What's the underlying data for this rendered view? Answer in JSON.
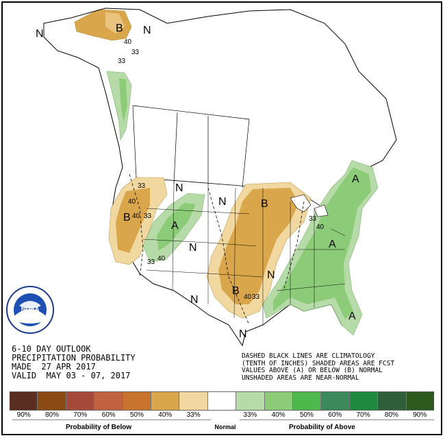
{
  "title": {
    "line1": "6-10 DAY OUTLOOK",
    "line2": "PRECIPITATION PROBABILITY",
    "line3": "MADE  27 APR 2017",
    "line4": "VALID  MAY 03 - 07, 2017"
  },
  "note": {
    "line1": "DASHED BLACK LINES ARE CLIMATOLOGY",
    "line2": "(TENTH OF INCHES) SHADED AREAS ARE FCST",
    "line3": "VALUES ABOVE (A) OR BELOW (B) NORMAL",
    "line4": "UNSHADED AREAS ARE NEAR-NORMAL"
  },
  "logo": {
    "text": "NOAA",
    "ring_text": "NATIONAL OCEANIC AND ATMOSPHERIC ADMINISTRATION · U.S. DEPARTMENT OF COMMERCE"
  },
  "map_labels": {
    "alaska_b": "B",
    "alaska_n1": "N",
    "alaska_n2": "N",
    "west_b": "B",
    "west_n": "N",
    "nw_a": "A",
    "plains_n1": "N",
    "plains_n2": "N",
    "plains_n3": "N",
    "central_b": "B",
    "south_b": "B",
    "east_a1": "A",
    "east_a2": "A",
    "east_a3": "A",
    "mid_n": "N",
    "sw_n": "N",
    "tx_n": "N"
  },
  "contour_labels": {
    "ak40": "40",
    "ak33": "33",
    "ak33b": "33",
    "w33": "33",
    "w40": "40",
    "w33b": "33",
    "w40b": "40",
    "nw33": "33",
    "nw40": "40",
    "s40": "40",
    "s33": "33",
    "e33": "33",
    "e40": "40"
  },
  "legend": {
    "colors": [
      "#5a2e21",
      "#8a4a12",
      "#a54a3b",
      "#c0613f",
      "#c8742f",
      "#d9a64b",
      "#f1d8a0",
      "#ffffff",
      "#b7dba8",
      "#8ccc79",
      "#4db84b",
      "#3c8a5c",
      "#1f8a3f",
      "#2f5e3a",
      "#2c5a1e"
    ],
    "ticks": [
      "90%",
      "80%",
      "70%",
      "60%",
      "50%",
      "40%",
      "33%",
      "",
      "33%",
      "40%",
      "50%",
      "60%",
      "70%",
      "80%",
      "90%"
    ],
    "below_label": "Probability of Below",
    "normal_label": "Normal",
    "above_label": "Probability of Above"
  },
  "map_colors": {
    "below_light": "#f1d8a0",
    "below_mid": "#d9a64b",
    "above_light": "#b7dba8",
    "above_mid": "#8ccc79"
  }
}
